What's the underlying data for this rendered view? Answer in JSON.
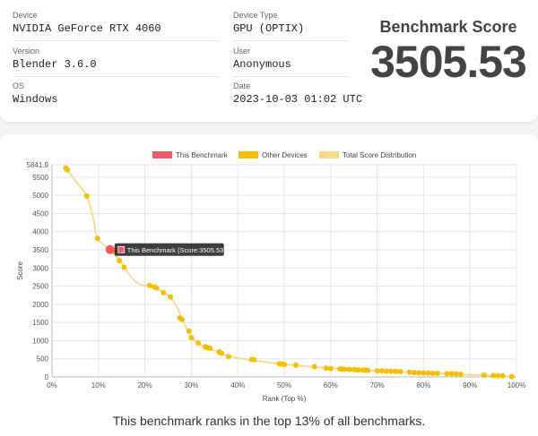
{
  "device": {
    "label": "Device",
    "value": "NVIDIA GeForce RTX 4060"
  },
  "device_type": {
    "label": "Device Type",
    "value": "GPU (OPTIX)"
  },
  "version": {
    "label": "Version",
    "value": "Blender 3.6.0"
  },
  "user": {
    "label": "User",
    "value": "Anonymous"
  },
  "os": {
    "label": "OS",
    "value": "Windows"
  },
  "date": {
    "label": "Date",
    "value": "2023-10-03 01:02 UTC"
  },
  "score": {
    "title": "Benchmark Score",
    "value": "3505.53"
  },
  "legend": [
    "This Benchmark",
    "Other Devices",
    "Total Score Distribution"
  ],
  "tooltip": "This Benchmark (Score:3505.53)",
  "caption": "This benchmark ranks in the top 13% of all benchmarks.",
  "colors": {
    "this": "#f25a6a",
    "other": "#f5bf00",
    "dist": "#f7d98a"
  },
  "chart_data": {
    "type": "scatter",
    "title": "",
    "xlabel": "Rank (Top %)",
    "ylabel": "Score",
    "xlim": [
      0,
      100
    ],
    "ylim": [
      0,
      5841.9
    ],
    "x_ticks": [
      "0%",
      "10%",
      "20%",
      "30%",
      "40%",
      "50%",
      "60%",
      "70%",
      "80%",
      "90%",
      "100%"
    ],
    "y_ticks": [
      "0",
      "500",
      "1000",
      "1500",
      "2000",
      "2500",
      "3000",
      "3500",
      "4000",
      "4500",
      "5000",
      "5500",
      "5841.9"
    ],
    "this_benchmark": {
      "x": 12.5,
      "y": 3505.53
    },
    "other_devices": {
      "x": [
        3,
        3.3,
        7.5,
        9.8,
        13.5,
        14.5,
        15.5,
        21,
        22,
        22.5,
        24,
        25.5,
        27.5,
        28,
        29.5,
        30,
        31.5,
        33,
        33.5,
        34,
        36,
        36.5,
        38,
        43,
        43.5,
        49,
        49.5,
        50,
        52.5,
        56.5,
        59,
        60,
        62,
        62.5,
        63,
        64,
        65,
        65.5,
        66,
        67,
        67.5,
        68,
        70,
        71,
        72,
        73,
        74,
        75,
        77,
        78,
        79,
        80,
        81,
        82,
        83,
        85,
        86,
        87,
        88,
        93,
        95,
        96,
        97,
        99
      ],
      "y": [
        5750,
        5700,
        4980,
        3810,
        3450,
        3200,
        3020,
        2520,
        2480,
        2450,
        2320,
        2200,
        1620,
        1580,
        1260,
        1080,
        930,
        830,
        800,
        790,
        690,
        650,
        560,
        480,
        470,
        360,
        350,
        340,
        320,
        280,
        240,
        230,
        220,
        215,
        210,
        205,
        200,
        195,
        192,
        188,
        185,
        180,
        170,
        165,
        160,
        155,
        150,
        145,
        130,
        120,
        115,
        110,
        105,
        100,
        95,
        90,
        85,
        80,
        75,
        50,
        40,
        35,
        30,
        10
      ]
    },
    "distribution": {
      "x": [
        2.5,
        5,
        7.5,
        9,
        9.8,
        12.5,
        15,
        17,
        19,
        22,
        25,
        27,
        28,
        30,
        32,
        35,
        38,
        42,
        48,
        55,
        62,
        70,
        80,
        90,
        100
      ],
      "y": [
        5841.9,
        5400,
        4980,
        4300,
        3810,
        3505.53,
        3150,
        2750,
        2550,
        2450,
        2250,
        1900,
        1600,
        1100,
        880,
        720,
        580,
        480,
        380,
        290,
        220,
        170,
        110,
        60,
        0
      ]
    }
  }
}
